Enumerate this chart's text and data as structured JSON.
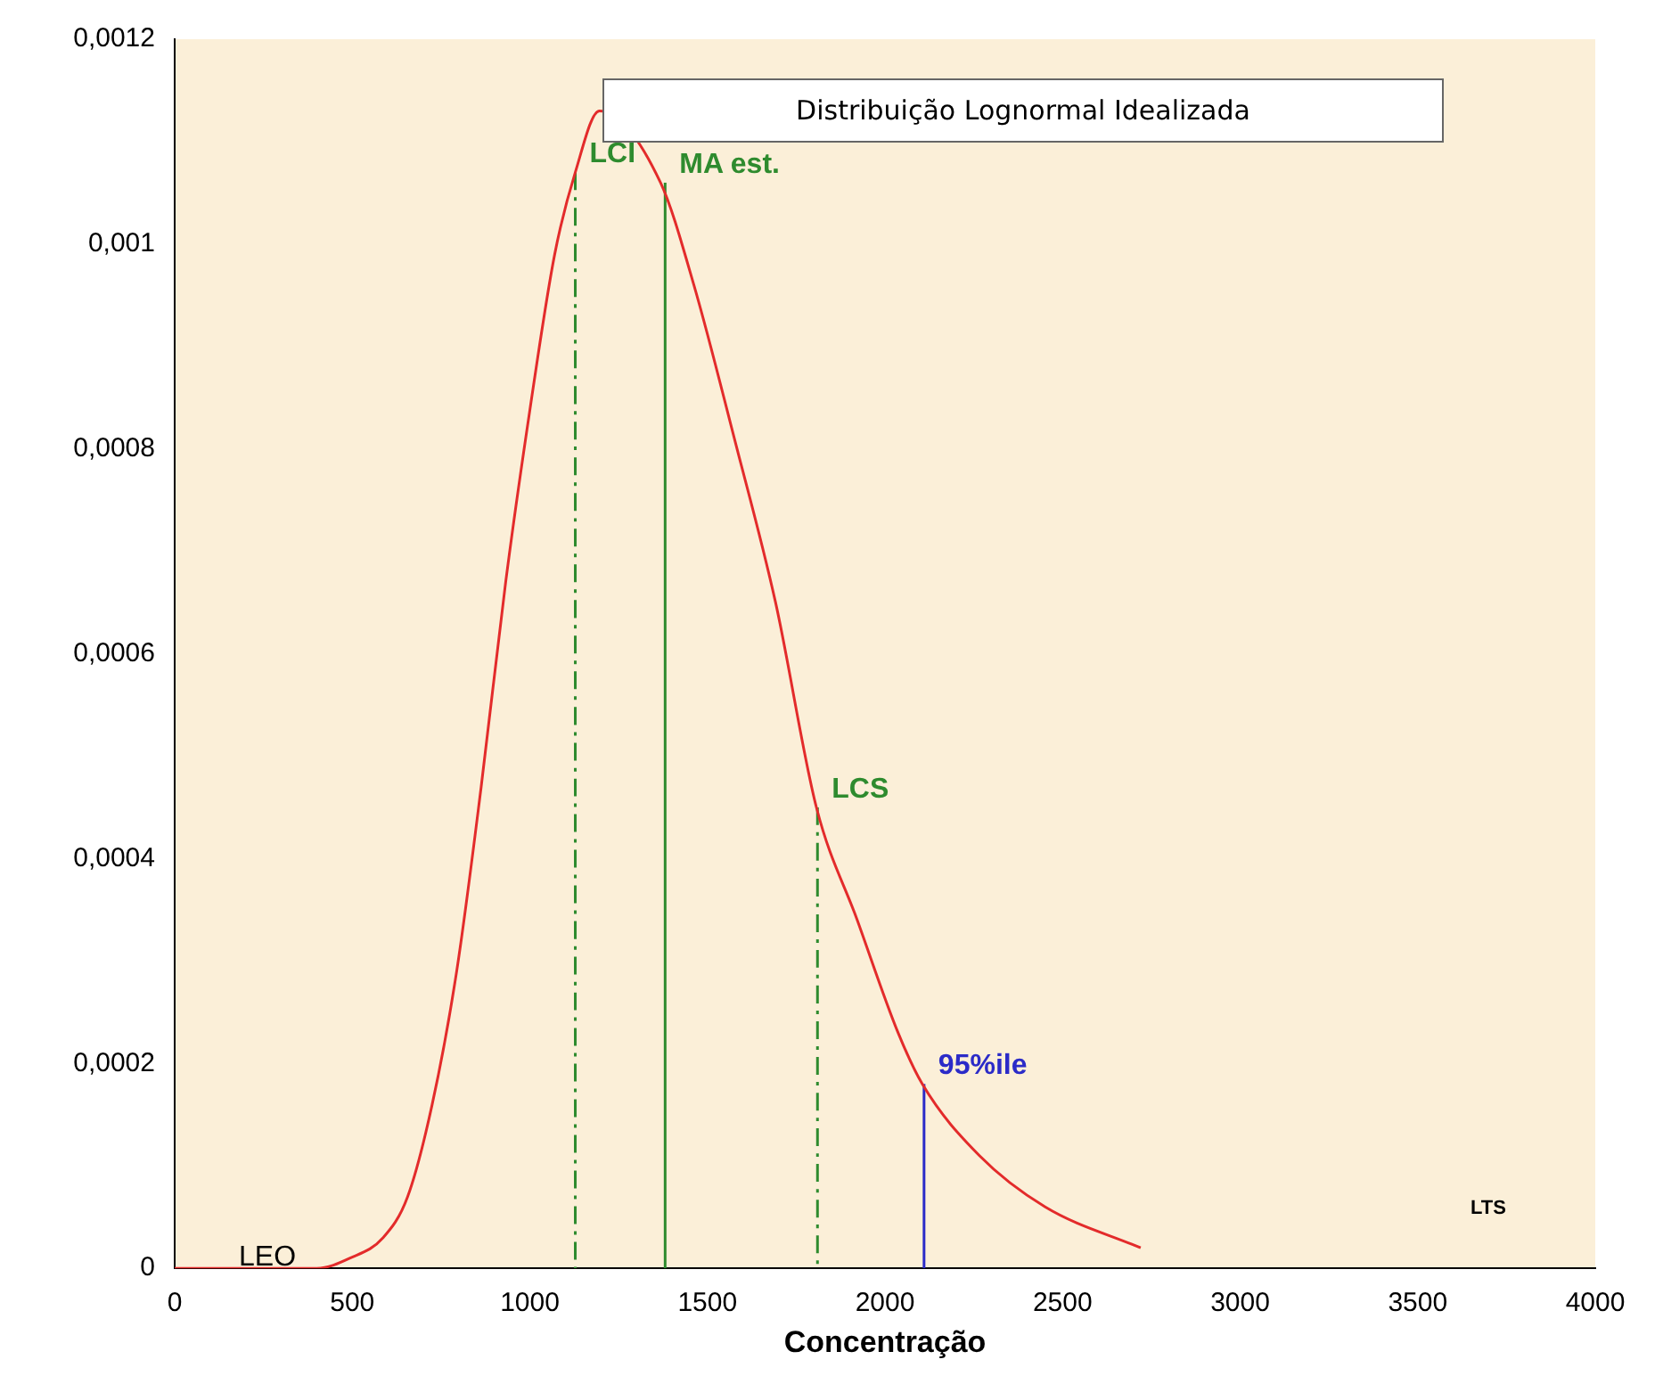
{
  "chart_data": {
    "type": "line",
    "title": "Distribuição Lognormal Idealizada",
    "xlabel": "Concentração",
    "xlim": [
      0,
      4000
    ],
    "xticks": [
      0,
      500,
      1000,
      1500,
      2000,
      2500,
      3000,
      3500,
      4000
    ],
    "ylim": [
      0,
      0.0012
    ],
    "yticks": [
      0,
      {
        "value": 0.0002,
        "label": "0,0002"
      },
      {
        "value": 0.0004,
        "label": "0,0004"
      },
      {
        "value": 0.0006,
        "label": "0,0006"
      },
      {
        "value": 0.0008,
        "label": "0,0008"
      },
      {
        "value": 0.001,
        "label": "0,001"
      },
      {
        "value": 0.0012,
        "label": "0,0012"
      }
    ],
    "grid": false,
    "legend": false,
    "marker": "none",
    "line_style": "solid",
    "series": [
      {
        "color": "#e32b2b",
        "x": [
          0,
          400,
          494,
          587,
          656,
          725,
          794,
          863,
          932,
          1001,
          1070,
          1128,
          1196,
          1368,
          1462,
          1576,
          1692,
          1807,
          1922,
          2037,
          2105,
          2266,
          2451,
          2720
        ],
        "values": [
          0,
          0,
          1e-05,
          3e-05,
          7e-05,
          0.00016,
          0.00029,
          0.00047,
          0.00067,
          0.00084,
          0.00099,
          0.00107,
          0.00113,
          0.00106,
          0.00096,
          0.00081,
          0.00065,
          0.00045,
          0.00034,
          0.00023,
          0.00018,
          0.00011,
          6e-05,
          2e-05
        ]
      },
      {
        "name": "LCI",
        "color": "#2e8b2e",
        "line_style": "dashed",
        "x": [
          1128,
          1128
        ],
        "values": [
          0.00107,
          0
        ]
      },
      {
        "name": "MA est.",
        "color": "#2e8b2e",
        "x": [
          1381,
          1381
        ],
        "values": [
          0.00106,
          0
        ]
      },
      {
        "name": "LCS",
        "color": "#2e8b2e",
        "line_style": "dashed",
        "x": [
          1810,
          1810
        ],
        "values": [
          0.00045,
          0
        ]
      },
      {
        "name": "95%ile",
        "color": "#2b2bc8",
        "x": [
          2110,
          2110
        ],
        "values": [
          0.00018,
          0
        ]
      }
    ],
    "annotations": [
      "LEO",
      "LTS"
    ]
  }
}
